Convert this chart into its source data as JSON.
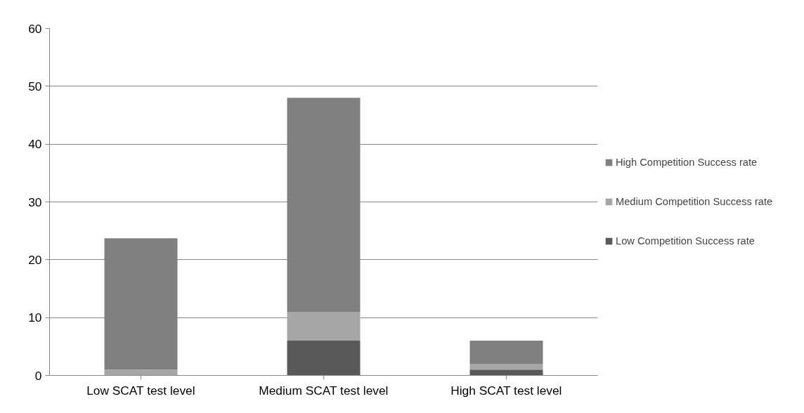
{
  "chart_data": {
    "type": "bar",
    "stacked": true,
    "categories": [
      "Low SCAT test level",
      "Medium SCAT test level",
      "High SCAT test level"
    ],
    "series": [
      {
        "name": "Low Competition Success rate",
        "color": "#595959",
        "values": [
          0,
          6,
          1
        ]
      },
      {
        "name": "Medium Competition Success rate",
        "color": "#a6a6a6",
        "values": [
          1,
          5,
          1
        ]
      },
      {
        "name": "High Competition Success rate",
        "color": "#808080",
        "values": [
          22.7,
          37,
          4
        ]
      }
    ],
    "ylim": [
      0,
      60
    ],
    "yticks": [
      0,
      10,
      20,
      30,
      40,
      50,
      60
    ],
    "grid": "y",
    "legend": "right"
  }
}
